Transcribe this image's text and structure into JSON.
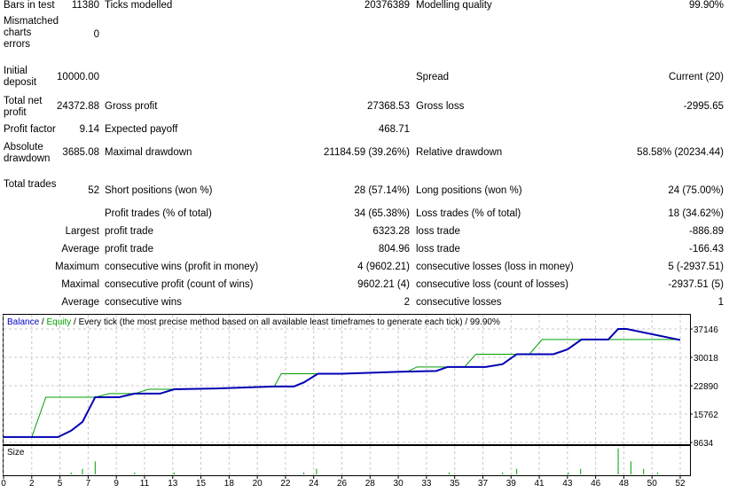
{
  "report": {
    "rows": [
      [
        "Bars in test",
        "11380",
        "Ticks modelled",
        "20376389",
        "Modelling quality",
        "99.90%"
      ],
      [
        "Mismatched charts errors",
        "0",
        "",
        "",
        "",
        ""
      ],
      [
        "Initial deposit",
        "10000.00",
        "",
        "",
        "Spread",
        "Current (20)"
      ],
      [
        "Total net profit",
        "24372.88",
        "Gross profit",
        "27368.53",
        "Gross loss",
        "-2995.65"
      ],
      [
        "Profit factor",
        "9.14",
        "Expected payoff",
        "468.71",
        "",
        ""
      ],
      [
        "Absolute drawdown",
        "3685.08",
        "Maximal drawdown",
        "21184.59 (39.26%)",
        "Relative drawdown",
        "58.58% (20234.44)"
      ],
      [
        "Total trades",
        "52",
        "Short positions (won %)",
        "28 (57.14%)",
        "Long positions (won %)",
        "24 (75.00%)"
      ],
      [
        "",
        "",
        "Profit trades (% of total)",
        "34 (65.38%)",
        "Loss trades (% of total)",
        "18 (34.62%)"
      ],
      [
        "",
        "Largest",
        "profit trade",
        "6323.28",
        "loss trade",
        "-886.89"
      ],
      [
        "",
        "Average",
        "profit trade",
        "804.96",
        "loss trade",
        "-166.43"
      ],
      [
        "",
        "Maximum",
        "consecutive wins (profit in money)",
        "4 (9602.21)",
        "consecutive losses (loss in money)",
        "5 (-2937.51)"
      ],
      [
        "",
        "Maximal",
        "consecutive profit (count of wins)",
        "9602.21 (4)",
        "consecutive loss (count of losses)",
        "-2937.51 (5)"
      ],
      [
        "",
        "Average",
        "consecutive wins",
        "2",
        "consecutive losses",
        "1"
      ]
    ]
  },
  "chart_data": {
    "type": "line",
    "title_balance": "Balance",
    "title_sep": " / ",
    "title_equity": "Equity",
    "title_rest": " / Every tick (the most precise method based on all available least timeframes to generate each tick) / 99.90%",
    "size_label": "Size",
    "colors": {
      "balance": "#0000b4",
      "equity": "#00a000",
      "size": "#00a000",
      "grid": "#c8c8c8"
    },
    "x_ticks": [
      0,
      2,
      5,
      7,
      9,
      11,
      13,
      15,
      18,
      20,
      22,
      24,
      26,
      28,
      30,
      33,
      35,
      37,
      39,
      41,
      43,
      46,
      48,
      50,
      52
    ],
    "y_ticks": [
      8634,
      15762,
      22890,
      30018,
      37146
    ],
    "ylim": [
      8634,
      37146
    ],
    "series": [
      {
        "name": "Balance",
        "points": [
          [
            0,
            10000
          ],
          [
            4.8,
            10000
          ],
          [
            5.8,
            11600
          ],
          [
            6.6,
            13800
          ],
          [
            7.5,
            20000
          ],
          [
            9.2,
            20000
          ],
          [
            10.3,
            20900
          ],
          [
            12.1,
            20900
          ],
          [
            13.1,
            22000
          ],
          [
            16.6,
            22200
          ],
          [
            21.2,
            22700
          ],
          [
            22.6,
            22700
          ],
          [
            23.3,
            23700
          ],
          [
            24.3,
            25900
          ],
          [
            26,
            25900
          ],
          [
            30.2,
            26400
          ],
          [
            33.7,
            26600
          ],
          [
            34.5,
            27600
          ],
          [
            37.2,
            27600
          ],
          [
            38.4,
            28300
          ],
          [
            39.4,
            30800
          ],
          [
            42,
            30800
          ],
          [
            43,
            32000
          ],
          [
            44.5,
            34500
          ],
          [
            46.9,
            34500
          ],
          [
            47.6,
            37146
          ],
          [
            48.2,
            37146
          ],
          [
            52,
            34373
          ]
        ]
      },
      {
        "name": "Equity",
        "points": [
          [
            0,
            10000
          ],
          [
            2,
            10000
          ],
          [
            3.5,
            20000
          ],
          [
            7.5,
            20000
          ],
          [
            8.5,
            20900
          ],
          [
            10.3,
            20900
          ],
          [
            11.3,
            22000
          ],
          [
            13.1,
            22000
          ],
          [
            16.6,
            22200
          ],
          [
            21.2,
            22700
          ],
          [
            21.7,
            25900
          ],
          [
            24.3,
            25900
          ],
          [
            26,
            25900
          ],
          [
            30.2,
            26400
          ],
          [
            31.1,
            26600
          ],
          [
            32,
            27600
          ],
          [
            35.7,
            27600
          ],
          [
            36.5,
            30800
          ],
          [
            40.3,
            30800
          ],
          [
            41.2,
            34500
          ],
          [
            52,
            34500
          ]
        ]
      }
    ],
    "size": [
      [
        5.8,
        0.1
      ],
      [
        6.6,
        0.3
      ],
      [
        7.5,
        0.7
      ],
      [
        10.3,
        0.1
      ],
      [
        13.1,
        0.1
      ],
      [
        23.3,
        0.1
      ],
      [
        24.2,
        0.3
      ],
      [
        34.6,
        0.1
      ],
      [
        38.4,
        0.1
      ],
      [
        39.4,
        0.3
      ],
      [
        43.1,
        0.1
      ],
      [
        44.4,
        0.3
      ],
      [
        47.6,
        1.4
      ],
      [
        48.5,
        0.7
      ],
      [
        49.4,
        0.3
      ],
      [
        50.4,
        0.1
      ]
    ]
  }
}
